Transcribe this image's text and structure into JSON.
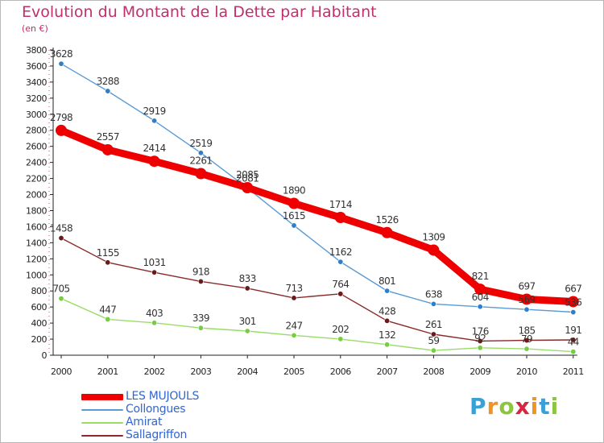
{
  "colors": {
    "title": "#c0306a",
    "legend_text": "#3366cc",
    "axis": "#222222",
    "grid": "#d94a7a"
  },
  "chart_data": {
    "type": "line",
    "title": "Evolution du Montant de la Dette par Habitant",
    "subtitle": "(en €)",
    "xlabel": "",
    "ylabel": "",
    "categories": [
      "2000",
      "2001",
      "2002",
      "2003",
      "2004",
      "2005",
      "2006",
      "2007",
      "2008",
      "2009",
      "2010",
      "2011"
    ],
    "ylim": [
      0,
      3800
    ],
    "yticks": [
      0,
      200,
      400,
      600,
      800,
      1000,
      1200,
      1400,
      1600,
      1800,
      2000,
      2200,
      2400,
      2600,
      2800,
      3000,
      3200,
      3400,
      3600,
      3800
    ],
    "grid": false,
    "legend_position": "bottom-left",
    "series": [
      {
        "name": "LES MUJOULS",
        "color": "#ee0000",
        "point_color": "#ee0000",
        "values": [
          2798,
          2557,
          2414,
          2261,
          2085,
          1890,
          1714,
          1526,
          1309,
          821,
          697,
          667
        ],
        "labels": [
          "2798",
          "2557",
          "2414",
          "2261",
          "2085",
          "1890",
          "1714",
          "1526",
          "1309",
          "821",
          "697",
          "667"
        ]
      },
      {
        "name": "Collongues",
        "color": "#5b9bd5",
        "point_color": "#2e7fc9",
        "values": [
          3628,
          3288,
          2919,
          2519,
          2081,
          1615,
          1162,
          801,
          638,
          604,
          569,
          536
        ],
        "labels": [
          "3628",
          "3288",
          "2919",
          "2519",
          "2081",
          "1615",
          "1162",
          "801",
          "638",
          "604",
          "569",
          "536"
        ]
      },
      {
        "name": "Amirat",
        "color": "#99dd66",
        "point_color": "#77cc44",
        "values": [
          705,
          447,
          403,
          339,
          301,
          247,
          202,
          132,
          59,
          92,
          79,
          44
        ],
        "labels": [
          "705",
          "447",
          "403",
          "339",
          "301",
          "247",
          "202",
          "132",
          "59",
          "92",
          "79",
          "44"
        ]
      },
      {
        "name": "Sallagriffon",
        "color": "#8b2a2a",
        "point_color": "#6b1a1a",
        "values": [
          1458,
          1155,
          1031,
          918,
          833,
          713,
          764,
          428,
          261,
          176,
          185,
          191
        ],
        "labels": [
          "1458",
          "1155",
          "1031",
          "918",
          "833",
          "713",
          "764",
          "428",
          "261",
          "176",
          "185",
          "191"
        ]
      }
    ]
  },
  "brand": {
    "letters": [
      "P",
      "r",
      "o",
      "x",
      "i",
      "t",
      "i"
    ],
    "colors": [
      "#3aa0d8",
      "#f29222",
      "#8cc63f",
      "#d7263d",
      "#f29222",
      "#3aa0d8",
      "#8cc63f"
    ]
  }
}
